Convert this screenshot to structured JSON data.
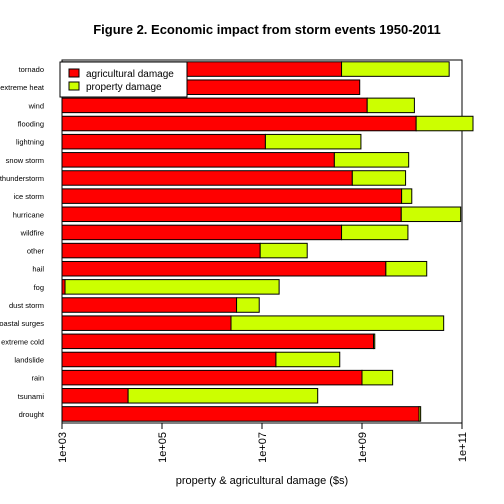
{
  "chart_data": {
    "type": "bar",
    "orientation": "horizontal",
    "stacked": true,
    "title": "Figure 2. Economic impact from storm events 1950-2011",
    "xlabel": "property & agricultural damage ($s)",
    "ylabel": "",
    "x_scale": "log",
    "xlim": [
      1000,
      100000000000
    ],
    "x_ticks": [
      "1e+03",
      "1e+05",
      "1e+07",
      "1e+09",
      "1e+11"
    ],
    "x_tick_values": [
      1000,
      100000,
      10000000,
      1000000000,
      100000000000
    ],
    "legend_position": "top-left",
    "grid": false,
    "categories": [
      "tornado",
      "extreme heat",
      "wind",
      "flooding",
      "lightning",
      "snow storm",
      "thunderstorm",
      "ice storm",
      "hurricane",
      "wildfire",
      "other",
      "hail",
      "fog",
      "dust storm",
      "coastal surges",
      "extreme cold",
      "landslide",
      "rain",
      "tsunami",
      "drought"
    ],
    "series": [
      {
        "name": "agricultural damage",
        "color": "#ff0000",
        "values": [
          390000000,
          900000000,
          1270000000,
          12100000000,
          11700000,
          280000000,
          640000000,
          6200000000,
          6100000000,
          390000000,
          9200000,
          3000000000,
          1150,
          3100000,
          2400000,
          1700000000,
          19000000,
          1000000000,
          21000,
          13800000000
        ]
      },
      {
        "name": "property damage",
        "color": "#ccff00",
        "values": [
          55000000000,
          0,
          9900000000,
          160000000000,
          940000000,
          8300000000,
          6800000000,
          3700000000,
          88000000000,
          7900000000,
          71000000,
          16700000000,
          22000000,
          5700000,
          43000000000,
          100000000,
          340000000,
          3100000000,
          130000000,
          1100000000
        ]
      }
    ]
  }
}
